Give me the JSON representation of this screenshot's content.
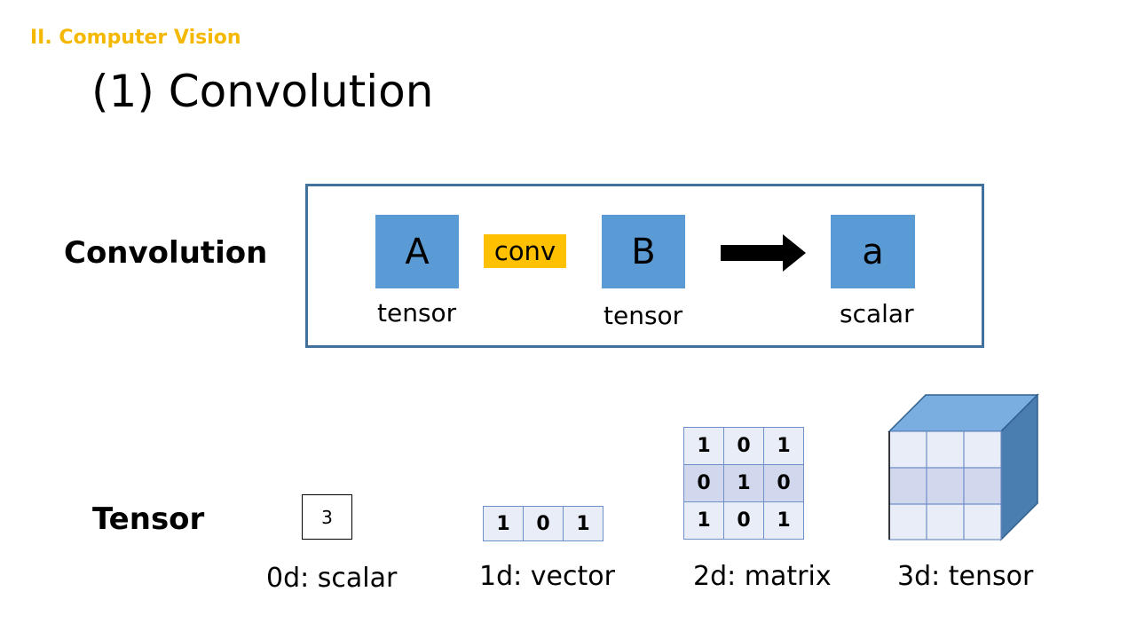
{
  "header": {
    "section": "II. Computer Vision",
    "title": "(1) Convolution"
  },
  "convolution_row": {
    "label": "Convolution",
    "input_a": {
      "symbol": "A",
      "caption": "tensor"
    },
    "operator": "conv",
    "input_b": {
      "symbol": "B",
      "caption": "tensor"
    },
    "output": {
      "symbol": "a",
      "caption": "scalar"
    }
  },
  "tensor_row": {
    "label": "Tensor",
    "scalar": {
      "value": "3",
      "caption": "0d: scalar"
    },
    "vector": {
      "values": [
        "1",
        "0",
        "1"
      ],
      "caption": "1d: vector"
    },
    "matrix": {
      "rows": [
        [
          "1",
          "0",
          "1"
        ],
        [
          "0",
          "1",
          "0"
        ],
        [
          "1",
          "0",
          "1"
        ]
      ],
      "caption": "2d: matrix"
    },
    "tensor3d": {
      "caption": "3d: tensor"
    }
  },
  "colors": {
    "section": "#f5b800",
    "box": "#5b9bd5",
    "frame": "#41719c",
    "conv": "#ffc000",
    "cell_light": "#e9edf7",
    "cell_mid": "#d1d8ed",
    "cube_top": "#7aade0",
    "cube_side": "#4a7eb1"
  }
}
